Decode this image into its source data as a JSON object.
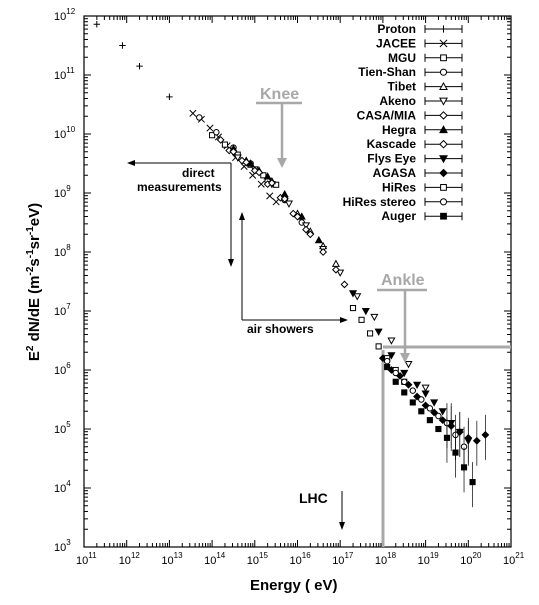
{
  "chart_data": {
    "type": "scatter",
    "xlabel": "Energy ( eV)",
    "ylabel_parts": [
      "E",
      "2",
      " dN/dE (m",
      "-2",
      "s",
      "-1",
      "sr",
      "-1",
      "eV)"
    ],
    "xscale": "log",
    "yscale": "log",
    "xlim": [
      100000000000.0,
      1e+21
    ],
    "ylim": [
      1000.0,
      1000000000000.0
    ],
    "x_ticks": [
      {
        "base": "10",
        "exp": "11"
      },
      {
        "base": "10",
        "exp": "12"
      },
      {
        "base": "10",
        "exp": "13"
      },
      {
        "base": "10",
        "exp": "14"
      },
      {
        "base": "10",
        "exp": "15"
      },
      {
        "base": "10",
        "exp": "16"
      },
      {
        "base": "10",
        "exp": "17"
      },
      {
        "base": "10",
        "exp": "18"
      },
      {
        "base": "10",
        "exp": "19"
      },
      {
        "base": "10",
        "exp": "20"
      },
      {
        "base": "10",
        "exp": "21"
      }
    ],
    "y_ticks": [
      {
        "base": "10",
        "exp": "3"
      },
      {
        "base": "10",
        "exp": "4"
      },
      {
        "base": "10",
        "exp": "5"
      },
      {
        "base": "10",
        "exp": "6"
      },
      {
        "base": "10",
        "exp": "7"
      },
      {
        "base": "10",
        "exp": "8"
      },
      {
        "base": "10",
        "exp": "9"
      },
      {
        "base": "10",
        "exp": "10"
      },
      {
        "base": "10",
        "exp": "11"
      },
      {
        "base": "10",
        "exp": "12"
      }
    ],
    "legend_position": "top-right",
    "series": [
      {
        "name": "Proton",
        "marker": "plus",
        "points": [
          [
            11.3,
            11.86
          ],
          [
            11.9,
            11.5
          ],
          [
            12.3,
            11.15
          ],
          [
            13.0,
            10.63
          ]
        ]
      },
      {
        "name": "JACEE",
        "marker": "cross",
        "points": [
          [
            13.55,
            10.35
          ],
          [
            13.75,
            10.25
          ],
          [
            13.95,
            10.1
          ],
          [
            14.15,
            9.95
          ],
          [
            14.35,
            9.8
          ],
          [
            14.55,
            9.6
          ],
          [
            14.75,
            9.45
          ],
          [
            14.95,
            9.3
          ],
          [
            15.15,
            9.15
          ],
          [
            15.35,
            8.95
          ],
          [
            15.5,
            8.85
          ]
        ]
      },
      {
        "name": "MGU",
        "marker": "square",
        "points": [
          [
            14.0,
            9.98
          ],
          [
            14.3,
            9.82
          ],
          [
            14.6,
            9.65
          ],
          [
            14.9,
            9.48
          ],
          [
            15.2,
            9.3
          ],
          [
            15.5,
            9.14
          ]
        ]
      },
      {
        "name": "Tien-Shan",
        "marker": "circle",
        "points": [
          [
            13.7,
            10.28
          ],
          [
            14.1,
            10.03
          ],
          [
            14.5,
            9.77
          ],
          [
            14.9,
            9.5
          ],
          [
            15.3,
            9.2
          ],
          [
            15.7,
            8.88
          ],
          [
            16.1,
            8.5
          ]
        ]
      },
      {
        "name": "Tibet",
        "marker": "triangle-up",
        "points": [
          [
            14.8,
            9.55
          ],
          [
            15.1,
            9.38
          ],
          [
            15.4,
            9.2
          ],
          [
            15.7,
            8.95
          ],
          [
            16.0,
            8.65
          ],
          [
            16.3,
            8.35
          ],
          [
            16.6,
            8.1
          ],
          [
            16.9,
            7.8
          ]
        ]
      },
      {
        "name": "Akeno",
        "marker": "triangle-down",
        "points": [
          [
            14.6,
            9.6
          ],
          [
            15.0,
            9.4
          ],
          [
            15.4,
            9.15
          ],
          [
            15.8,
            8.82
          ],
          [
            16.2,
            8.45
          ],
          [
            16.6,
            8.05
          ],
          [
            17.0,
            7.65
          ],
          [
            17.4,
            7.25
          ],
          [
            17.8,
            6.9
          ],
          [
            18.2,
            6.5
          ],
          [
            18.6,
            6.1
          ],
          [
            19.0,
            5.7
          ]
        ]
      },
      {
        "name": "CASA/MIA",
        "marker": "diamond",
        "points": [
          [
            14.4,
            9.72
          ],
          [
            14.7,
            9.55
          ],
          [
            15.0,
            9.38
          ],
          [
            15.3,
            9.15
          ],
          [
            15.6,
            8.92
          ],
          [
            15.9,
            8.65
          ],
          [
            16.2,
            8.38
          ]
        ]
      },
      {
        "name": "Hegra",
        "marker": "triangle-up-filled",
        "points": [
          [
            14.5,
            9.75
          ],
          [
            14.9,
            9.5
          ],
          [
            15.3,
            9.28
          ],
          [
            15.7,
            8.98
          ],
          [
            16.1,
            8.6
          ],
          [
            16.5,
            8.2
          ]
        ]
      },
      {
        "name": "Kascade",
        "marker": "diamond-open",
        "points": [
          [
            14.2,
            9.9
          ],
          [
            14.5,
            9.7
          ],
          [
            14.8,
            9.52
          ],
          [
            15.1,
            9.35
          ],
          [
            15.4,
            9.17
          ],
          [
            15.7,
            8.9
          ],
          [
            16.0,
            8.6
          ],
          [
            16.3,
            8.3
          ],
          [
            16.6,
            8.0
          ],
          [
            16.9,
            7.7
          ],
          [
            17.1,
            7.45
          ]
        ]
      },
      {
        "name": "Flys Eye",
        "marker": "triangle-down-filled",
        "points": [
          [
            17.3,
            7.3
          ],
          [
            17.6,
            7.0
          ],
          [
            17.9,
            6.65
          ],
          [
            18.2,
            6.25
          ],
          [
            18.5,
            5.95
          ],
          [
            18.8,
            5.75
          ],
          [
            19.0,
            5.6
          ],
          [
            19.2,
            5.45
          ],
          [
            19.4,
            5.3
          ],
          [
            19.6,
            5.1
          ],
          [
            19.8,
            4.95
          ],
          [
            20.0,
            4.8
          ]
        ]
      },
      {
        "name": "AGASA",
        "marker": "diamond-filled",
        "points": [
          [
            18.0,
            6.2
          ],
          [
            18.2,
            6.0
          ],
          [
            18.4,
            5.9
          ],
          [
            18.6,
            5.75
          ],
          [
            18.8,
            5.55
          ],
          [
            19.0,
            5.4
          ],
          [
            19.2,
            5.28
          ],
          [
            19.4,
            5.15
          ],
          [
            19.6,
            5.05
          ],
          [
            19.8,
            4.95
          ],
          [
            20.0,
            4.85
          ],
          [
            20.2,
            4.8
          ],
          [
            20.4,
            4.9
          ]
        ]
      },
      {
        "name": "HiRes",
        "marker": "square-open",
        "points": [
          [
            17.3,
            7.05
          ],
          [
            17.5,
            6.85
          ],
          [
            17.7,
            6.62
          ],
          [
            17.9,
            6.4
          ],
          [
            18.1,
            6.2
          ],
          [
            18.3,
            6.0
          ],
          [
            18.5,
            5.8
          ]
        ]
      },
      {
        "name": "HiRes stereo",
        "marker": "circle-open",
        "points": [
          [
            18.1,
            6.15
          ],
          [
            18.3,
            5.95
          ],
          [
            18.5,
            5.8
          ],
          [
            18.7,
            5.65
          ],
          [
            18.9,
            5.5
          ],
          [
            19.1,
            5.35
          ],
          [
            19.3,
            5.22
          ],
          [
            19.5,
            5.1
          ],
          [
            19.7,
            4.9
          ],
          [
            19.9,
            4.7
          ]
        ]
      },
      {
        "name": "Auger",
        "marker": "square-filled",
        "points": [
          [
            18.1,
            6.05
          ],
          [
            18.3,
            5.8
          ],
          [
            18.5,
            5.62
          ],
          [
            18.7,
            5.45
          ],
          [
            18.9,
            5.3
          ],
          [
            19.1,
            5.15
          ],
          [
            19.3,
            5.0
          ],
          [
            19.5,
            4.85
          ],
          [
            19.7,
            4.6
          ],
          [
            19.9,
            4.35
          ],
          [
            20.1,
            4.1
          ]
        ]
      }
    ],
    "annotations": {
      "knee": "Knee",
      "ankle": "Ankle",
      "lhc": "LHC",
      "direct": [
        "direct",
        "measurements"
      ],
      "air_showers": "air showers"
    }
  }
}
